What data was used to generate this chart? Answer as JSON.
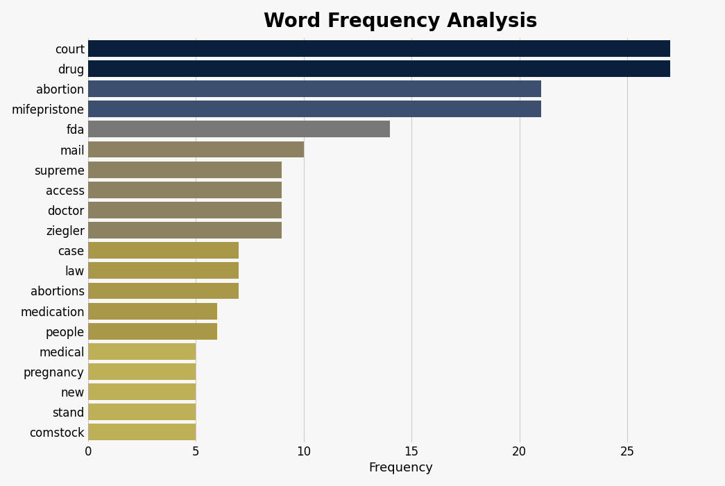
{
  "title": "Word Frequency Analysis",
  "xlabel": "Frequency",
  "categories": [
    "court",
    "drug",
    "abortion",
    "mifepristone",
    "fda",
    "mail",
    "supreme",
    "access",
    "doctor",
    "ziegler",
    "case",
    "law",
    "abortions",
    "medication",
    "people",
    "medical",
    "pregnancy",
    "new",
    "stand",
    "comstock"
  ],
  "values": [
    27,
    27,
    21,
    21,
    14,
    10,
    9,
    9,
    9,
    9,
    7,
    7,
    7,
    6,
    6,
    5,
    5,
    5,
    5,
    5
  ],
  "bar_colors": [
    "#0a1f3c",
    "#0a1f3c",
    "#3d4f6e",
    "#3d4f6e",
    "#797878",
    "#8c8262",
    "#8c8262",
    "#8c8262",
    "#8c8262",
    "#8c8262",
    "#a89848",
    "#a89848",
    "#a89848",
    "#a89848",
    "#a89848",
    "#bdb057",
    "#bdb057",
    "#bdb057",
    "#bdb057",
    "#bdb057"
  ],
  "background_color": "#f7f7f7",
  "xlim": [
    0,
    29
  ],
  "xticks": [
    0,
    5,
    10,
    15,
    20,
    25
  ],
  "title_fontsize": 20,
  "label_fontsize": 13,
  "tick_fontsize": 12,
  "bar_height": 0.82
}
